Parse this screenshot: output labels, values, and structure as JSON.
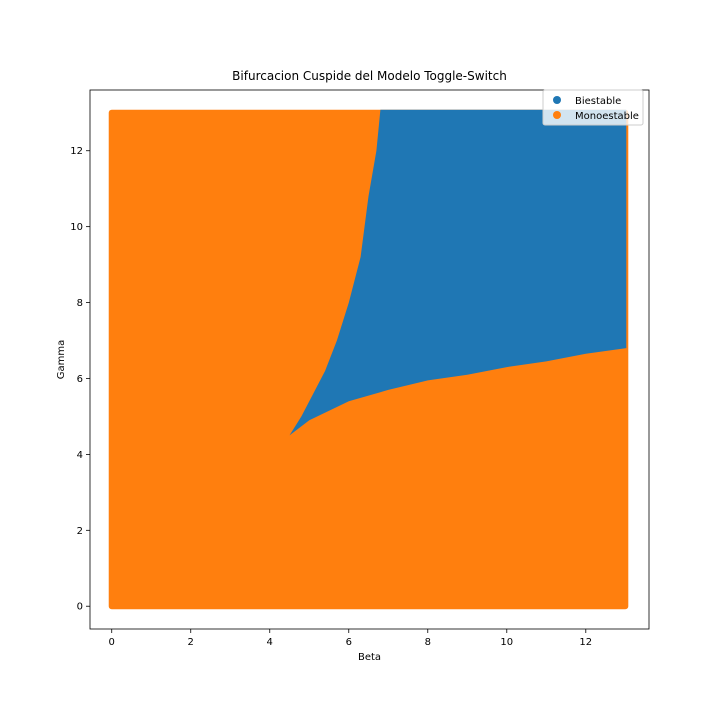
{
  "chart_data": {
    "type": "scatter",
    "title": "Bifurcacion Cuspide del Modelo Toggle-Switch",
    "xlabel": "Beta",
    "ylabel": "Gamma",
    "xlim": [
      -0.55,
      13.6
    ],
    "ylim": [
      -0.6,
      13.6
    ],
    "xticks": [
      0,
      2,
      4,
      6,
      8,
      10,
      12
    ],
    "yticks": [
      0,
      2,
      4,
      6,
      8,
      10,
      12
    ],
    "grid": false,
    "legend_position": "top-right",
    "grid_x": [
      0,
      13
    ],
    "grid_y": [
      0,
      13
    ],
    "series": [
      {
        "name": "Biestable",
        "color": "#1f77b4",
        "region": "bistable wedge above the cusp",
        "cusp_point": {
          "x": 4.5,
          "y": 4.5
        },
        "left_boundary": [
          {
            "beta": 4.5,
            "gamma": 4.5
          },
          {
            "beta": 4.8,
            "gamma": 5.0
          },
          {
            "beta": 5.1,
            "gamma": 5.6
          },
          {
            "beta": 5.4,
            "gamma": 6.2
          },
          {
            "beta": 5.7,
            "gamma": 7.0
          },
          {
            "beta": 6.0,
            "gamma": 8.0
          },
          {
            "beta": 6.3,
            "gamma": 9.2
          },
          {
            "beta": 6.5,
            "gamma": 10.8
          },
          {
            "beta": 6.7,
            "gamma": 12.0
          },
          {
            "beta": 6.8,
            "gamma": 13.0
          }
        ],
        "right_boundary": [
          {
            "beta": 4.5,
            "gamma": 4.5
          },
          {
            "beta": 5.0,
            "gamma": 4.9
          },
          {
            "beta": 6.0,
            "gamma": 5.4
          },
          {
            "beta": 7.0,
            "gamma": 5.7
          },
          {
            "beta": 8.0,
            "gamma": 5.95
          },
          {
            "beta": 9.0,
            "gamma": 6.1
          },
          {
            "beta": 10.0,
            "gamma": 6.3
          },
          {
            "beta": 11.0,
            "gamma": 6.45
          },
          {
            "beta": 12.0,
            "gamma": 6.65
          },
          {
            "beta": 13.0,
            "gamma": 6.8
          }
        ]
      },
      {
        "name": "Monoestable",
        "color": "#ff7f0e",
        "region": "rest of the grid 0<=beta<=13, 0<=gamma<=13"
      }
    ]
  }
}
